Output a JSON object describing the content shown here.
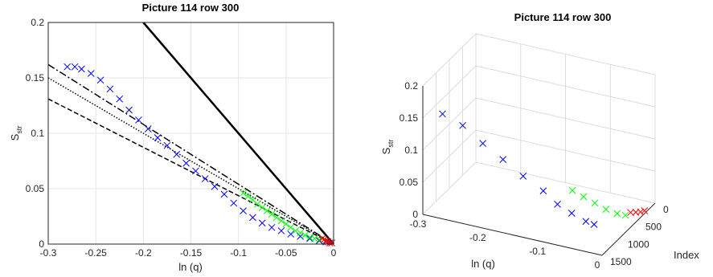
{
  "colors": {
    "series_blue": "#0000ff",
    "series_green": "#00ff00",
    "series_red": "#ff0000",
    "reference_lines": "#000000",
    "grid": "#e6e6e6"
  },
  "chart_data": [
    {
      "type": "scatter",
      "title": "Picture 114 row 300",
      "xlabel": "ln (q)",
      "ylabel_main": "S",
      "ylabel_sub": "str",
      "xlim": [
        -0.3,
        0
      ],
      "ylim": [
        0,
        0.2
      ],
      "grid": true,
      "marker": "x",
      "x_ticks": [
        "-0.3",
        "-0.25",
        "-0.2",
        "-0.15",
        "-0.1",
        "-0.05",
        "0"
      ],
      "y_ticks": [
        "0",
        "0.05",
        "0.1",
        "0.15",
        "0.2"
      ],
      "series": [
        {
          "color": "blue",
          "points": [
            [
              -0.28,
              0.16
            ],
            [
              -0.272,
              0.16
            ],
            [
              -0.265,
              0.158
            ],
            [
              -0.255,
              0.154
            ],
            [
              -0.245,
              0.148
            ],
            [
              -0.235,
              0.14
            ],
            [
              -0.225,
              0.131
            ],
            [
              -0.215,
              0.121
            ],
            [
              -0.205,
              0.112
            ],
            [
              -0.195,
              0.104
            ],
            [
              -0.185,
              0.096
            ],
            [
              -0.175,
              0.089
            ],
            [
              -0.165,
              0.081
            ],
            [
              -0.155,
              0.073
            ],
            [
              -0.145,
              0.066
            ],
            [
              -0.135,
              0.059
            ],
            [
              -0.125,
              0.052
            ],
            [
              -0.115,
              0.045
            ],
            [
              -0.105,
              0.037
            ],
            [
              -0.095,
              0.03
            ],
            [
              -0.085,
              0.024
            ],
            [
              -0.075,
              0.019
            ],
            [
              -0.065,
              0.015
            ],
            [
              -0.055,
              0.012
            ],
            [
              -0.045,
              0.009
            ],
            [
              -0.035,
              0.007
            ],
            [
              -0.025,
              0.005
            ],
            [
              -0.015,
              0.003
            ],
            [
              -0.008,
              0.002
            ]
          ]
        },
        {
          "color": "green",
          "points": [
            [
              -0.095,
              0.046
            ],
            [
              -0.09,
              0.043
            ],
            [
              -0.085,
              0.04
            ],
            [
              -0.08,
              0.036
            ],
            [
              -0.075,
              0.033
            ],
            [
              -0.07,
              0.03
            ],
            [
              -0.065,
              0.027
            ],
            [
              -0.06,
              0.024
            ],
            [
              -0.055,
              0.021
            ],
            [
              -0.05,
              0.018
            ],
            [
              -0.045,
              0.015
            ],
            [
              -0.04,
              0.012
            ],
            [
              -0.035,
              0.01
            ],
            [
              -0.03,
              0.008
            ],
            [
              -0.025,
              0.006
            ],
            [
              -0.02,
              0.005
            ],
            [
              -0.015,
              0.004
            ]
          ]
        },
        {
          "color": "red",
          "points": [
            [
              -0.012,
              0.005
            ],
            [
              -0.01,
              0.004
            ],
            [
              -0.008,
              0.003
            ],
            [
              -0.006,
              0.002
            ],
            [
              -0.004,
              0.001
            ],
            [
              -0.002,
              0.001
            ]
          ]
        }
      ],
      "reference_lines": [
        {
          "style": "solid",
          "points": [
            [
              -0.2,
              0.2
            ],
            [
              0,
              0
            ]
          ]
        },
        {
          "style": "dashdot",
          "points": [
            [
              -0.3,
              0.162
            ],
            [
              0,
              0
            ]
          ]
        },
        {
          "style": "dotted",
          "points": [
            [
              -0.3,
              0.15
            ],
            [
              0,
              0
            ]
          ]
        },
        {
          "style": "dashed",
          "points": [
            [
              -0.3,
              0.131
            ],
            [
              0,
              0
            ]
          ]
        }
      ]
    },
    {
      "type": "scatter",
      "view": "3d",
      "title": "Picture 114 row 300",
      "xlabel": "ln (q)",
      "ylabel": "Index",
      "zlabel_main": "S",
      "zlabel_sub": "str",
      "x_ticks": [
        "-0.3",
        "-0.2",
        "-0.1",
        "0"
      ],
      "y_ticks": [
        "0",
        "500",
        "1000",
        "1500"
      ],
      "z_ticks": [
        "0",
        "0.05",
        "0.1",
        "0.15",
        "0.2"
      ],
      "grid": true,
      "marker": "x",
      "series": [
        {
          "color": "blue",
          "points": [
            [
              -0.27,
              0.16
            ],
            [
              -0.24,
              0.145
            ],
            [
              -0.21,
              0.12
            ],
            [
              -0.18,
              0.098
            ],
            [
              -0.15,
              0.075
            ],
            [
              -0.12,
              0.055
            ],
            [
              -0.1,
              0.035
            ],
            [
              -0.08,
              0.022
            ],
            [
              -0.06,
              0.01
            ],
            [
              -0.05,
              0.004
            ]
          ]
        },
        {
          "color": "green",
          "points": [
            [
              -0.09,
              0.045
            ],
            [
              -0.075,
              0.035
            ],
            [
              -0.06,
              0.025
            ],
            [
              -0.045,
              0.015
            ],
            [
              -0.03,
              0.008
            ],
            [
              -0.02,
              0.004
            ]
          ]
        },
        {
          "color": "red",
          "points": [
            [
              -0.015,
              0.006
            ],
            [
              -0.01,
              0.004
            ],
            [
              -0.006,
              0.002
            ],
            [
              -0.003,
              0.001
            ]
          ]
        }
      ]
    }
  ]
}
